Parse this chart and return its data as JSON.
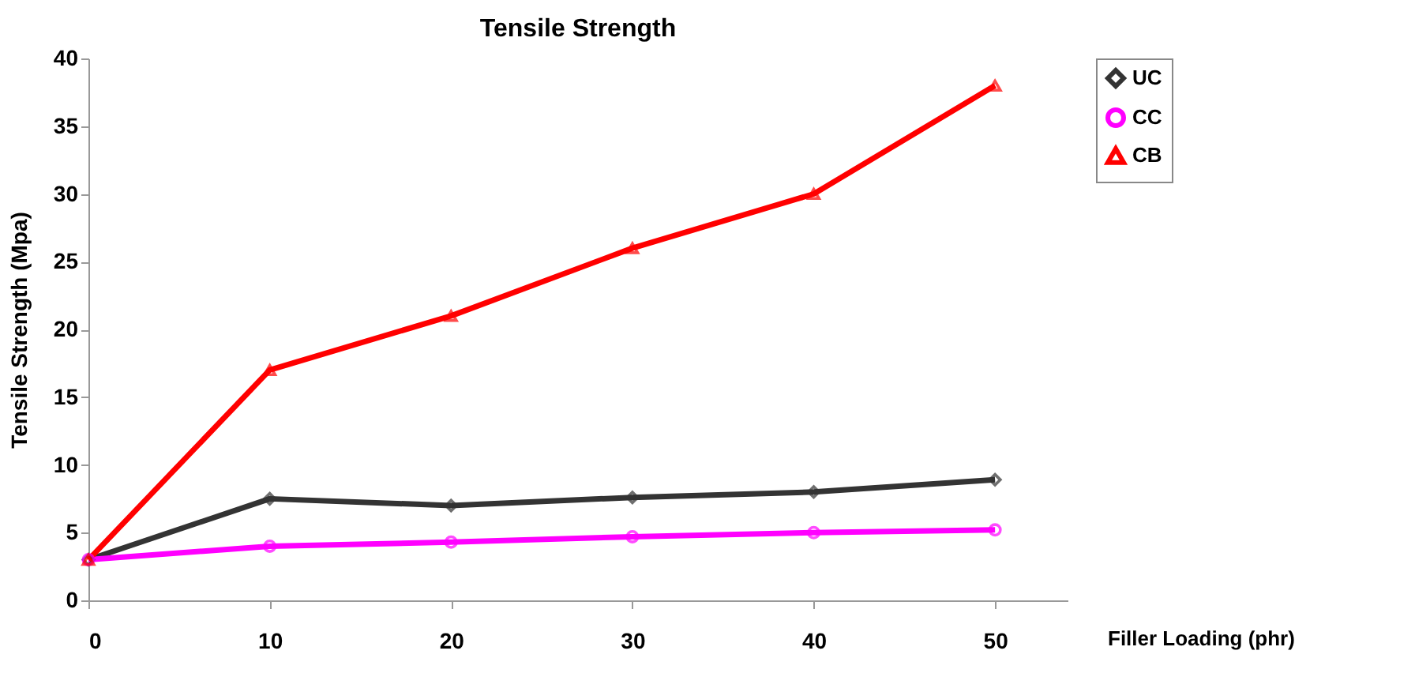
{
  "chart_data": {
    "type": "line",
    "title": "Tensile Strength",
    "xlabel": "Filler Loading (phr)",
    "ylabel": "Tensile Strength (Mpa)",
    "x": [
      0,
      10,
      20,
      30,
      40,
      50
    ],
    "xlim": [
      0,
      54
    ],
    "xticks": [
      0,
      10,
      20,
      30,
      40,
      50
    ],
    "ylim": [
      0,
      40
    ],
    "yticks": [
      0,
      5,
      10,
      15,
      20,
      25,
      30,
      35,
      40
    ],
    "grid": false,
    "legend": "right",
    "line_style": "solid",
    "series": [
      {
        "name": "UC",
        "color": "#333333",
        "marker": "diamond",
        "values": [
          3,
          7.5,
          7,
          7.6,
          8,
          8.9
        ]
      },
      {
        "name": "CC",
        "color": "#ff00ff",
        "marker": "circle",
        "values": [
          3,
          4,
          4.3,
          4.7,
          5,
          5.2
        ]
      },
      {
        "name": "CB",
        "color": "#ff0000",
        "marker": "triangle",
        "values": [
          3,
          17,
          21,
          26,
          30,
          38
        ]
      }
    ]
  }
}
